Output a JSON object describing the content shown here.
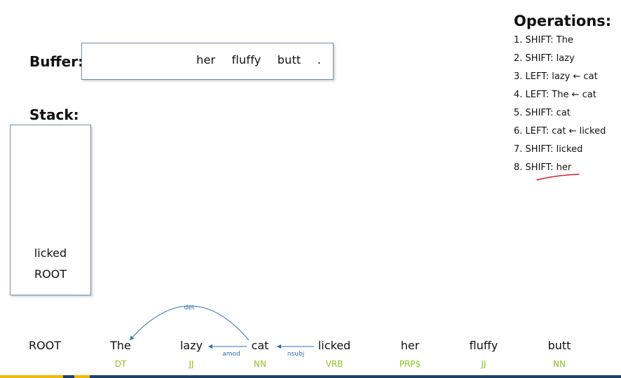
{
  "buffer": {
    "label": "Buffer:",
    "words": [
      "her",
      "fluffy",
      "butt",
      "."
    ]
  },
  "stack": {
    "label": "Stack:",
    "items": [
      "licked",
      "ROOT"
    ]
  },
  "operations": {
    "title": "Operations:",
    "items": [
      "1. SHIFT: The",
      "2. SHIFT: lazy",
      "3. LEFT: lazy ← cat",
      "4. LEFT: The ← cat",
      "5. SHIFT: cat",
      "6. LEFT: cat ← licked",
      "7. SHIFT: licked",
      "8. SHIFT: her"
    ]
  },
  "sentence": {
    "tokens": [
      {
        "word": "ROOT",
        "pos": ""
      },
      {
        "word": "The",
        "pos": "DT"
      },
      {
        "word": "lazy",
        "pos": "JJ"
      },
      {
        "word": "cat",
        "pos": "NN"
      },
      {
        "word": "licked",
        "pos": "VRB"
      },
      {
        "word": "her",
        "pos": "PRP$"
      },
      {
        "word": "fluffy",
        "pos": "JJ"
      },
      {
        "word": "butt",
        "pos": "NN"
      }
    ],
    "arcs": [
      {
        "label": "det",
        "head": "cat",
        "dependent": "The"
      },
      {
        "label": "amod",
        "head": "cat",
        "dependent": "lazy"
      },
      {
        "label": "nsubj",
        "head": "licked",
        "dependent": "cat"
      }
    ]
  },
  "colors": {
    "pos_tag": "#8ec21f",
    "arc": "#2f6fb0",
    "annotation": "#d11f2f",
    "box_border": "#6f8fb3"
  }
}
